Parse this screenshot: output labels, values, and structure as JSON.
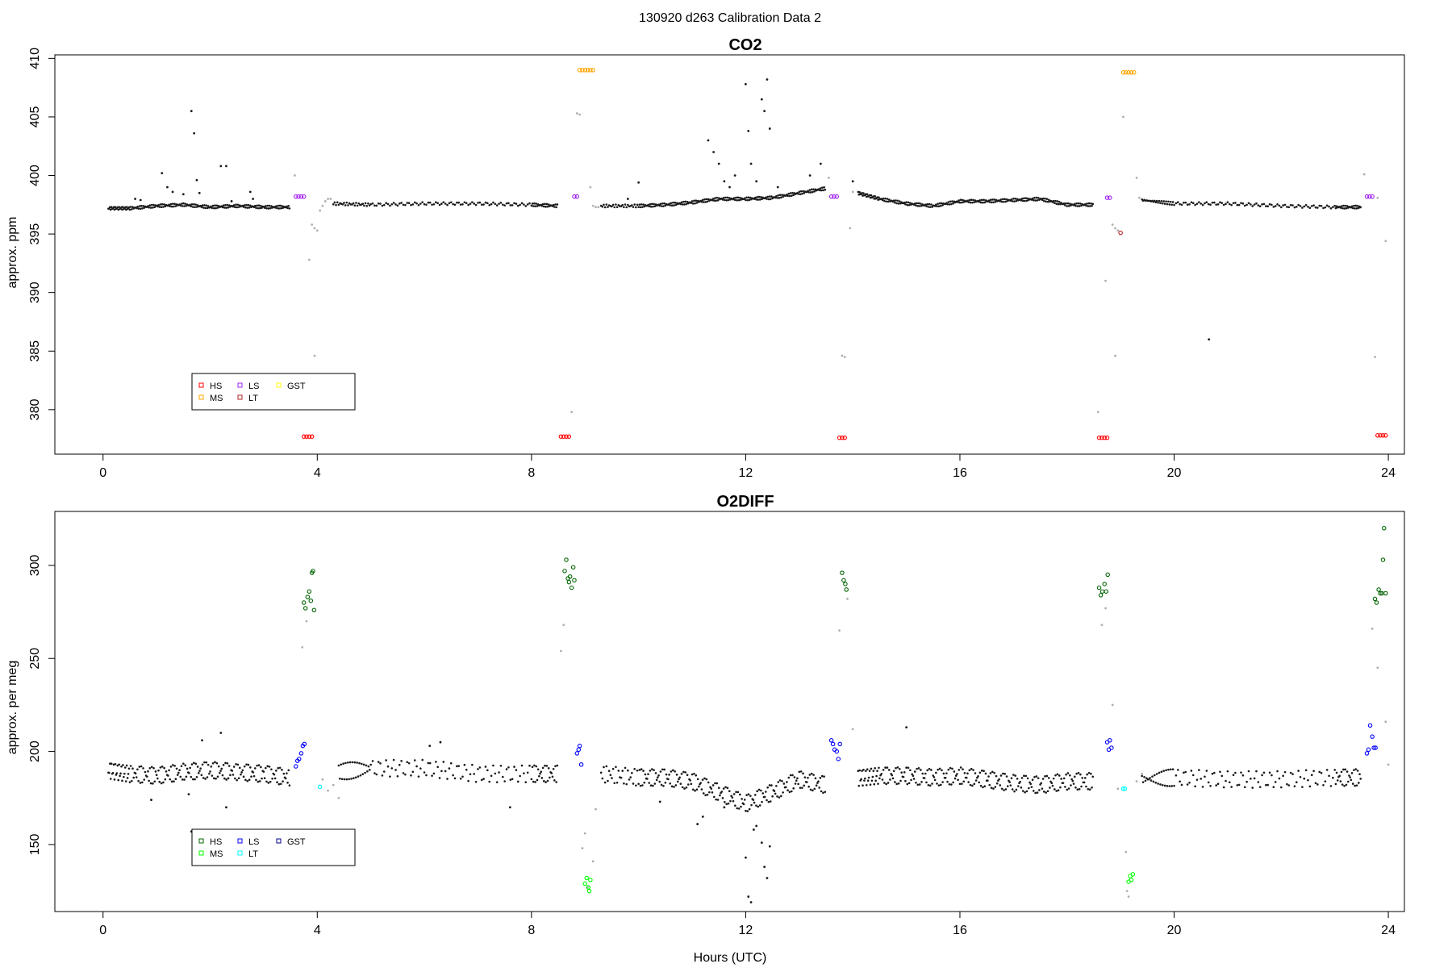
{
  "page_title": "130920   d263   Calibration Data 2",
  "x_axis": {
    "label": "Hours (UTC)",
    "range": [
      0,
      24
    ],
    "ticks": [
      0,
      4,
      8,
      12,
      16,
      20,
      24
    ],
    "tick_labels": [
      "0",
      "4",
      "8",
      "12",
      "16",
      "20",
      "24"
    ]
  },
  "chart_data": [
    {
      "type": "scatter",
      "title": "CO2",
      "xlabel": "",
      "ylabel": "approx. ppm",
      "xlim": [
        -0.9,
        24.3
      ],
      "ylim": [
        376.2,
        410.3
      ],
      "yticks": [
        380,
        385,
        390,
        395,
        400,
        405,
        410
      ],
      "ytick_labels": [
        "380",
        "385",
        "390",
        "395",
        "400",
        "405",
        "410"
      ],
      "grid": false,
      "legend_position": "bottom-left",
      "legend": [
        {
          "name": "HS",
          "color": "#ff0000"
        },
        {
          "name": "MS",
          "color": "#ffa500"
        },
        {
          "name": "LS",
          "color": "#a020f0"
        },
        {
          "name": "LT",
          "color": "#b22222"
        },
        {
          "name": "GST",
          "color": "#ffff00"
        }
      ],
      "calibration_points": [
        {
          "gas": "HS",
          "color": "#ff0000",
          "x": [
            3.75,
            3.8,
            3.85,
            3.9
          ],
          "y": [
            377.7,
            377.7,
            377.7,
            377.7
          ]
        },
        {
          "gas": "HS",
          "color": "#ff0000",
          "x": [
            8.55,
            8.6,
            8.65,
            8.7
          ],
          "y": [
            377.7,
            377.7,
            377.7,
            377.7
          ]
        },
        {
          "gas": "HS",
          "color": "#ff0000",
          "x": [
            13.75,
            13.8,
            13.85
          ],
          "y": [
            377.6,
            377.6,
            377.6
          ]
        },
        {
          "gas": "HS",
          "color": "#ff0000",
          "x": [
            18.6,
            18.65,
            18.7,
            18.75
          ],
          "y": [
            377.6,
            377.6,
            377.6,
            377.6
          ]
        },
        {
          "gas": "HS",
          "color": "#ff0000",
          "x": [
            23.8,
            23.85,
            23.9,
            23.95
          ],
          "y": [
            377.8,
            377.8,
            377.8,
            377.8
          ]
        },
        {
          "gas": "MS",
          "color": "#ffa500",
          "x": [
            8.9,
            8.95,
            9.0,
            9.05,
            9.1,
            9.15
          ],
          "y": [
            409.0,
            409.0,
            409.0,
            409.0,
            409.0,
            409.0
          ]
        },
        {
          "gas": "MS",
          "color": "#ffa500",
          "x": [
            19.05,
            19.1,
            19.15,
            19.2,
            19.25
          ],
          "y": [
            408.8,
            408.8,
            408.8,
            408.8,
            408.8
          ]
        },
        {
          "gas": "LS",
          "color": "#a020f0",
          "x": [
            3.6,
            3.65,
            3.7,
            3.75
          ],
          "y": [
            398.2,
            398.2,
            398.2,
            398.2
          ]
        },
        {
          "gas": "LS",
          "color": "#a020f0",
          "x": [
            8.8,
            8.85
          ],
          "y": [
            398.2,
            398.2
          ]
        },
        {
          "gas": "LS",
          "color": "#a020f0",
          "x": [
            13.6,
            13.65,
            13.7
          ],
          "y": [
            398.2,
            398.2,
            398.2
          ]
        },
        {
          "gas": "LS",
          "color": "#a020f0",
          "x": [
            18.75,
            18.8
          ],
          "y": [
            398.1,
            398.1
          ]
        },
        {
          "gas": "LS",
          "color": "#a020f0",
          "x": [
            23.6,
            23.65,
            23.7
          ],
          "y": [
            398.2,
            398.2,
            398.2
          ]
        },
        {
          "gas": "LT",
          "color": "#b22222",
          "x": [
            19.0
          ],
          "y": [
            395.1
          ]
        }
      ],
      "transition_points": {
        "color": "#b0b0b0",
        "x": [
          3.58,
          3.85,
          3.9,
          3.95,
          4.0,
          4.05,
          4.1,
          4.15,
          4.2,
          4.25,
          8.75,
          8.9,
          9.1,
          9.15,
          9.2,
          9.25,
          13.55,
          13.85,
          13.95,
          14.0,
          18.58,
          18.72,
          18.85,
          18.9,
          18.95,
          19.3,
          19.35,
          23.55,
          23.75,
          23.8,
          23.95,
          3.95,
          8.85,
          13.8,
          18.9,
          19.05
        ],
        "y": [
          400.0,
          392.8,
          395.8,
          395.5,
          395.3,
          397.0,
          397.4,
          397.8,
          398.0,
          398.0,
          379.8,
          405.2,
          399.0,
          397.4,
          397.3,
          397.3,
          399.8,
          384.5,
          395.5,
          398.6,
          379.8,
          391.0,
          395.8,
          395.5,
          395.3,
          399.8,
          398.1,
          400.1,
          384.5,
          398.1,
          394.4,
          384.6,
          405.3,
          384.6,
          384.6,
          405.0
        ]
      },
      "ambient_trend": {
        "color": "#1a1a1a",
        "segments": [
          {
            "x": [
              0.1,
              0.5,
              1.0,
              1.5,
              2.0,
              2.5,
              3.0,
              3.5
            ],
            "y": [
              397.2,
              397.2,
              397.4,
              397.5,
              397.3,
              397.4,
              397.3,
              397.3
            ]
          },
          {
            "x": [
              4.3,
              5.0,
              6.0,
              7.0,
              8.0,
              8.5
            ],
            "y": [
              397.6,
              397.5,
              397.6,
              397.6,
              397.5,
              397.4
            ]
          },
          {
            "x": [
              9.3,
              10.0,
              10.5,
              11.0,
              11.5,
              12.0,
              12.5,
              13.0,
              13.5
            ],
            "y": [
              397.4,
              397.4,
              397.5,
              397.7,
              398.0,
              398.0,
              398.1,
              398.5,
              398.9
            ]
          },
          {
            "x": [
              14.1,
              14.5,
              15.0,
              15.5,
              16.0,
              16.5,
              17.0,
              17.5,
              18.0,
              18.5
            ],
            "y": [
              398.5,
              398.0,
              397.6,
              397.4,
              397.8,
              397.8,
              397.9,
              398.0,
              397.5,
              397.5
            ]
          },
          {
            "x": [
              19.4,
              20.0,
              21.0,
              22.0,
              23.0,
              23.5
            ],
            "y": [
              397.9,
              397.6,
              397.6,
              397.4,
              397.3,
              397.3
            ]
          }
        ]
      },
      "spikes": {
        "color": "#1a1a1a",
        "x": [
          1.1,
          1.2,
          1.3,
          1.65,
          1.7,
          1.75,
          1.8,
          2.2,
          2.3,
          2.4,
          2.75,
          2.8,
          0.6,
          0.7,
          11.3,
          11.4,
          11.5,
          11.6,
          12.0,
          12.05,
          12.1,
          12.3,
          12.35,
          12.4,
          12.45,
          12.2,
          11.8,
          11.7,
          12.6,
          10.0,
          9.8,
          14.0,
          20.65,
          1.5,
          13.2,
          13.4
        ],
        "y": [
          400.2,
          399.0,
          398.6,
          405.5,
          403.6,
          399.6,
          398.5,
          400.8,
          400.8,
          397.8,
          398.6,
          398.0,
          398.0,
          397.9,
          403.0,
          402.0,
          401.0,
          399.5,
          407.8,
          403.8,
          401.0,
          406.5,
          405.5,
          408.2,
          404.0,
          399.5,
          400.0,
          399.0,
          399.0,
          399.4,
          398.0,
          399.5,
          386.0,
          398.4,
          400.0,
          401.0
        ]
      }
    },
    {
      "type": "scatter",
      "title": "O2DIFF",
      "xlabel": "Hours (UTC)",
      "ylabel": "approx. per meg",
      "xlim": [
        -0.9,
        24.3
      ],
      "ylim": [
        114,
        329
      ],
      "yticks": [
        150,
        200,
        250,
        300
      ],
      "ytick_labels": [
        "150",
        "200",
        "250",
        "300"
      ],
      "grid": false,
      "legend_position": "bottom-left",
      "legend": [
        {
          "name": "HS",
          "color": "#006400"
        },
        {
          "name": "MS",
          "color": "#00ff00"
        },
        {
          "name": "LS",
          "color": "#0000ff"
        },
        {
          "name": "LT",
          "color": "#00ffff"
        },
        {
          "name": "GST",
          "color": "#00008b"
        }
      ],
      "calibration_points": [
        {
          "gas": "HS",
          "color": "#006400",
          "x": [
            3.75,
            3.78,
            3.82,
            3.85,
            3.88,
            3.9,
            3.92,
            3.94
          ],
          "y": [
            280,
            277,
            283,
            286,
            281,
            296,
            297,
            276
          ]
        },
        {
          "gas": "HS",
          "color": "#006400",
          "x": [
            8.62,
            8.65,
            8.68,
            8.7,
            8.72,
            8.75,
            8.78,
            8.8
          ],
          "y": [
            297,
            303,
            293,
            291,
            294,
            288,
            299,
            292
          ]
        },
        {
          "gas": "HS",
          "color": "#006400",
          "x": [
            13.8,
            13.83,
            13.86,
            13.88
          ],
          "y": [
            296,
            292,
            290,
            287
          ]
        },
        {
          "gas": "HS",
          "color": "#006400",
          "x": [
            18.6,
            18.63,
            18.66,
            18.7,
            18.73,
            18.76
          ],
          "y": [
            288,
            284,
            286,
            290,
            286,
            295
          ]
        },
        {
          "gas": "HS",
          "color": "#006400",
          "x": [
            23.75,
            23.78,
            23.82,
            23.85,
            23.88,
            23.9,
            23.92,
            23.95
          ],
          "y": [
            282,
            280,
            287,
            285,
            285,
            303,
            320,
            285
          ]
        },
        {
          "gas": "MS",
          "color": "#00ff00",
          "x": [
            9.0,
            9.03,
            9.06,
            9.08,
            9.1
          ],
          "y": [
            129,
            132,
            127,
            125,
            131
          ]
        },
        {
          "gas": "MS",
          "color": "#00ff00",
          "x": [
            19.15,
            19.18,
            19.2,
            19.23
          ],
          "y": [
            130,
            133,
            131,
            134
          ]
        },
        {
          "gas": "LS",
          "color": "#0000ff",
          "x": [
            3.6,
            3.63,
            3.66,
            3.7,
            3.73,
            3.76
          ],
          "y": [
            192,
            195,
            196,
            199,
            203,
            204
          ]
        },
        {
          "gas": "LS",
          "color": "#0000ff",
          "x": [
            8.85,
            8.88,
            8.9,
            8.93
          ],
          "y": [
            199,
            201,
            203,
            193
          ]
        },
        {
          "gas": "LS",
          "color": "#0000ff",
          "x": [
            13.6,
            13.63,
            13.66,
            13.7,
            13.73,
            13.76
          ],
          "y": [
            206,
            204,
            201,
            200,
            196,
            204
          ]
        },
        {
          "gas": "LS",
          "color": "#0000ff",
          "x": [
            18.75,
            18.78,
            18.8,
            18.83
          ],
          "y": [
            205,
            201,
            206,
            202
          ]
        },
        {
          "gas": "LS",
          "color": "#0000ff",
          "x": [
            23.6,
            23.63,
            23.66,
            23.7,
            23.73,
            23.76
          ],
          "y": [
            199,
            201,
            214,
            208,
            202,
            202
          ]
        },
        {
          "gas": "LT",
          "color": "#00ffff",
          "x": [
            4.05,
            19.05,
            19.08
          ],
          "y": [
            181,
            180,
            180
          ]
        }
      ],
      "transition_points": {
        "color": "#b0b0b0",
        "x": [
          3.72,
          3.8,
          4.1,
          4.2,
          4.3,
          4.4,
          8.55,
          8.6,
          8.95,
          9.0,
          9.15,
          9.2,
          13.75,
          13.9,
          14.0,
          18.65,
          18.72,
          18.85,
          18.95,
          19.1,
          19.15,
          19.3,
          19.4,
          23.7,
          23.8,
          23.95,
          24.0,
          9.05,
          19.12
        ],
        "y": [
          256,
          270,
          185,
          179,
          182,
          175,
          254,
          268,
          148,
          156,
          141,
          169,
          265,
          282,
          212,
          268,
          277,
          225,
          180,
          146,
          122,
          184,
          188,
          266,
          245,
          216,
          193,
          127,
          125
        ]
      },
      "ambient_trend": {
        "color": "#1a1a1a",
        "segments": [
          {
            "x": [
              0.1,
              0.5,
              1.0,
              1.5,
              2.0,
              2.5,
              3.0,
              3.5
            ],
            "y": [
              190,
              188,
              187,
              189,
              190,
              189,
              188,
              186
            ]
          },
          {
            "x": [
              4.4,
              5.0,
              6.0,
              7.0,
              8.0,
              8.5
            ],
            "y": [
              189,
              191,
              191,
              188,
              188,
              188
            ]
          },
          {
            "x": [
              9.3,
              10.0,
              10.5,
              11.0,
              11.5,
              12.0,
              12.5,
              13.0,
              13.5
            ],
            "y": [
              188,
              186,
              186,
              184,
              178,
              172,
              178,
              185,
              182
            ]
          },
          {
            "x": [
              14.1,
              14.5,
              15.0,
              15.5,
              16.0,
              16.5,
              17.0,
              17.5,
              18.0,
              18.5
            ],
            "y": [
              186,
              187,
              187,
              186,
              187,
              185,
              183,
              182,
              184,
              184
            ]
          },
          {
            "x": [
              19.4,
              20.0,
              21.0,
              22.0,
              23.0,
              23.5
            ],
            "y": [
              185,
              186,
              185,
              185,
              186,
              186
            ]
          }
        ]
      },
      "spikes": {
        "color": "#1a1a1a",
        "x": [
          1.65,
          1.85,
          2.2,
          2.3,
          0.9,
          1.6,
          12.0,
          12.05,
          12.1,
          12.2,
          12.3,
          12.35,
          12.4,
          12.45,
          11.1,
          11.2,
          15.0,
          7.6,
          12.15,
          11.6,
          10.4,
          6.3,
          6.1
        ],
        "y": [
          157,
          206,
          210,
          170,
          174,
          177,
          143,
          122,
          119,
          160,
          151,
          138,
          132,
          149,
          161,
          165,
          213,
          170,
          158,
          170,
          173,
          205,
          203
        ]
      }
    }
  ]
}
